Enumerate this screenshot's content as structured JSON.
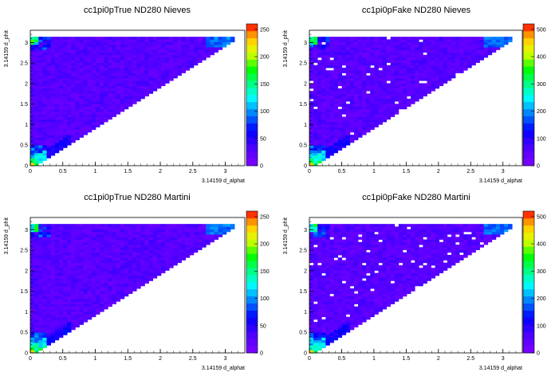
{
  "chart_data": [
    {
      "type": "heatmap",
      "title": "cc1pi0pTrue ND280 Nieves",
      "xlabel": "3.14159 d_alphat",
      "ylabel": "3.14159 d_phit",
      "xlim": [
        0,
        3.3
      ],
      "ylim": [
        0,
        3.3
      ],
      "xticks": [
        "0",
        "0.5",
        "1",
        "1.5",
        "2",
        "2.5",
        "3"
      ],
      "yticks": [
        "0",
        "0.5",
        "1",
        "1.5",
        "2",
        "2.5",
        "3"
      ],
      "zmax": 260,
      "zticks": [
        "0",
        "50",
        "100",
        "150",
        "200",
        "250"
      ],
      "grid": false,
      "colorbar": "right"
    },
    {
      "type": "heatmap",
      "title": "cc1pi0pFake ND280 Nieves",
      "xlabel": "3.14159 d_alphat",
      "ylabel": "3.14159 d_phit",
      "xlim": [
        0,
        3.3
      ],
      "ylim": [
        0,
        3.3
      ],
      "xticks": [
        "0",
        "0.5",
        "1",
        "1.5",
        "2",
        "2.5",
        "3"
      ],
      "yticks": [
        "0",
        "0.5",
        "1",
        "1.5",
        "2",
        "2.5",
        "3"
      ],
      "zmax": 520,
      "zticks": [
        "0",
        "100",
        "200",
        "300",
        "400",
        "500"
      ],
      "grid": false,
      "colorbar": "right"
    },
    {
      "type": "heatmap",
      "title": "cc1pi0pTrue ND280 Martini",
      "xlabel": "3.14159 d_alphat",
      "ylabel": "3.14159 d_phit",
      "xlim": [
        0,
        3.3
      ],
      "ylim": [
        0,
        3.3
      ],
      "xticks": [
        "0",
        "0.5",
        "1",
        "1.5",
        "2",
        "2.5",
        "3"
      ],
      "yticks": [
        "0",
        "0.5",
        "1",
        "1.5",
        "2",
        "2.5",
        "3"
      ],
      "zmax": 260,
      "zticks": [
        "0",
        "50",
        "100",
        "150",
        "200",
        "250"
      ],
      "grid": false,
      "colorbar": "right"
    },
    {
      "type": "heatmap",
      "title": "cc1pi0pFake ND280 Martini",
      "xlabel": "3.14159 d_alphat",
      "ylabel": "3.14159 d_phit",
      "xlim": [
        0,
        3.3
      ],
      "ylim": [
        0,
        3.3
      ],
      "xticks": [
        "0",
        "0.5",
        "1",
        "1.5",
        "2",
        "2.5",
        "3"
      ],
      "yticks": [
        "0",
        "0.5",
        "1",
        "1.5",
        "2",
        "2.5",
        "3"
      ],
      "zmax": 520,
      "zticks": [
        "0",
        "100",
        "200",
        "300",
        "400",
        "500"
      ],
      "grid": false,
      "colorbar": "right"
    }
  ]
}
